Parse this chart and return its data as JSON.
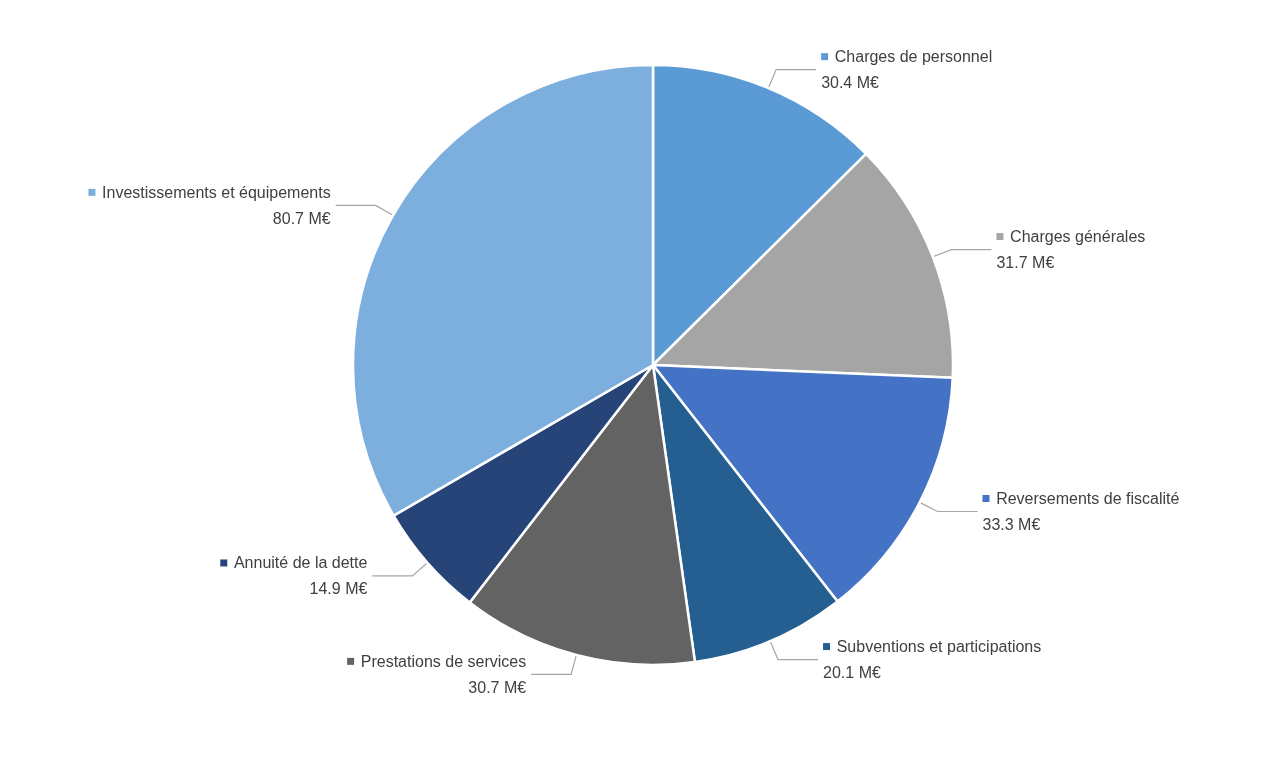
{
  "chart_data": {
    "type": "pie",
    "categories": [
      "Charges de personnel",
      "Charges générales",
      "Reversements de fiscalité",
      "Subventions et participations",
      "Prestations de services",
      "Annuité de la dette",
      "Investissements et équipements"
    ],
    "values": [
      30.4,
      31.7,
      33.3,
      20.1,
      30.7,
      14.9,
      80.7
    ],
    "value_labels": [
      "30.4 M€",
      "31.7 M€",
      "33.3 M€",
      "20.1 M€",
      "30.7 M€",
      "14.9 M€",
      "80.7 M€"
    ],
    "colors": [
      "#5b9bd5",
      "#a5a5a5",
      "#4472c4",
      "#255e91",
      "#636363",
      "#264478",
      "#7cafdd"
    ],
    "legend": true
  }
}
